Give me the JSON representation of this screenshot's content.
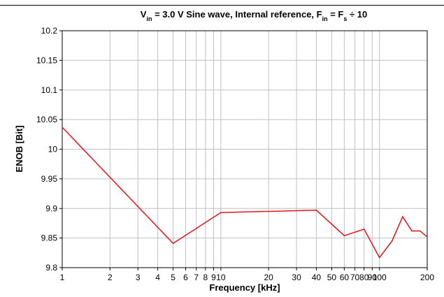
{
  "chart_data": {
    "type": "line",
    "title": {
      "parts": [
        {
          "t": "V"
        },
        {
          "t": "in",
          "sub": true
        },
        {
          "t": " = 3.0 V Sine wave, Internal reference, F"
        },
        {
          "t": "in",
          "sub": true
        },
        {
          "t": " = F"
        },
        {
          "t": "s",
          "sub": true
        },
        {
          "t": " ÷ 10"
        }
      ]
    },
    "xlabel": "Frequency [kHz]",
    "ylabel": "ENOB [Bit]",
    "xscale": "log",
    "xlim": [
      1,
      200
    ],
    "ylim": [
      9.8,
      10.2
    ],
    "x_ticks": [
      {
        "value": 1,
        "label": "1"
      },
      {
        "value": 2,
        "label": "2"
      },
      {
        "value": 3,
        "label": "3"
      },
      {
        "value": 4,
        "label": "4"
      },
      {
        "value": 5,
        "label": "5"
      },
      {
        "value": 6,
        "label": "6"
      },
      {
        "value": 7,
        "label": "7"
      },
      {
        "value": 8,
        "label": "8"
      },
      {
        "value": 9,
        "label": "9"
      },
      {
        "value": 10,
        "label": "10"
      },
      {
        "value": 20,
        "label": "20"
      },
      {
        "value": 30,
        "label": "30"
      },
      {
        "value": 40,
        "label": "40"
      },
      {
        "value": 50,
        "label": "50"
      },
      {
        "value": 60,
        "label": "60"
      },
      {
        "value": 70,
        "label": "70"
      },
      {
        "value": 80,
        "label": "80"
      },
      {
        "value": 90,
        "label": "90"
      },
      {
        "value": 100,
        "label": "100"
      },
      {
        "value": 200,
        "label": "200"
      }
    ],
    "x_gridlines": [
      2,
      3,
      4,
      5,
      6,
      7,
      8,
      9,
      10,
      20,
      30,
      40,
      50,
      60,
      70,
      80,
      90,
      100
    ],
    "y_ticks": [
      {
        "value": 9.8,
        "label": "9.8"
      },
      {
        "value": 9.85,
        "label": "9.85"
      },
      {
        "value": 9.9,
        "label": "9.9"
      },
      {
        "value": 9.95,
        "label": "9.95"
      },
      {
        "value": 10.0,
        "label": "10"
      },
      {
        "value": 10.05,
        "label": "10.05"
      },
      {
        "value": 10.1,
        "label": "10.1"
      },
      {
        "value": 10.15,
        "label": "10.15"
      },
      {
        "value": 10.2,
        "label": "10.2"
      }
    ],
    "grid": true,
    "series": [
      {
        "color": "#e8131b",
        "points": [
          [
            1,
            10.037
          ],
          [
            5,
            9.841
          ],
          [
            10,
            9.893
          ],
          [
            40,
            9.897
          ],
          [
            60,
            9.854
          ],
          [
            80,
            9.865
          ],
          [
            100,
            9.817
          ],
          [
            120,
            9.845
          ],
          [
            140,
            9.886
          ],
          [
            160,
            9.862
          ],
          [
            180,
            9.862
          ],
          [
            200,
            9.852
          ]
        ]
      }
    ]
  }
}
